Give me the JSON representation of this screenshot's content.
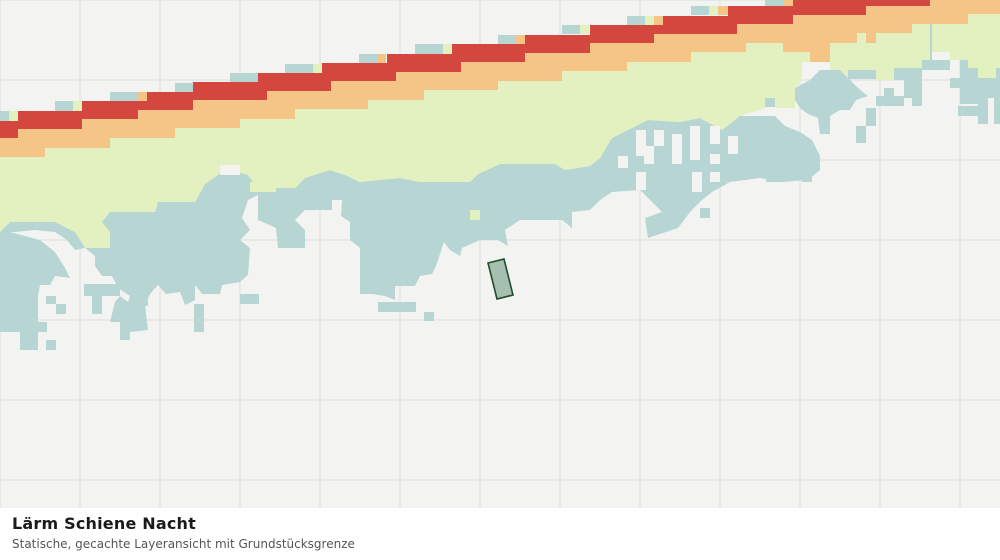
{
  "caption": {
    "title": "Lärm Schiene Nacht",
    "subtitle": "Statische, gecachte Layeransicht mit Grundstücksgrenze"
  },
  "colors": {
    "background": "#f3f4f2",
    "grid": "#dcdedb",
    "band_red": "#d4473f",
    "band_orange": "#f5c587",
    "band_yellow": "#e3f1c0",
    "band_teal": "#b7d5d3",
    "parcel_fill": "#a6bfae",
    "parcel_stroke": "#1f4d2d"
  },
  "layers": [
    {
      "name": "laermband-rot",
      "color_key": "band_red"
    },
    {
      "name": "laermband-orange",
      "color_key": "band_orange"
    },
    {
      "name": "laermband-gelb",
      "color_key": "band_yellow"
    },
    {
      "name": "laermband-tuerkis",
      "color_key": "band_teal"
    }
  ]
}
